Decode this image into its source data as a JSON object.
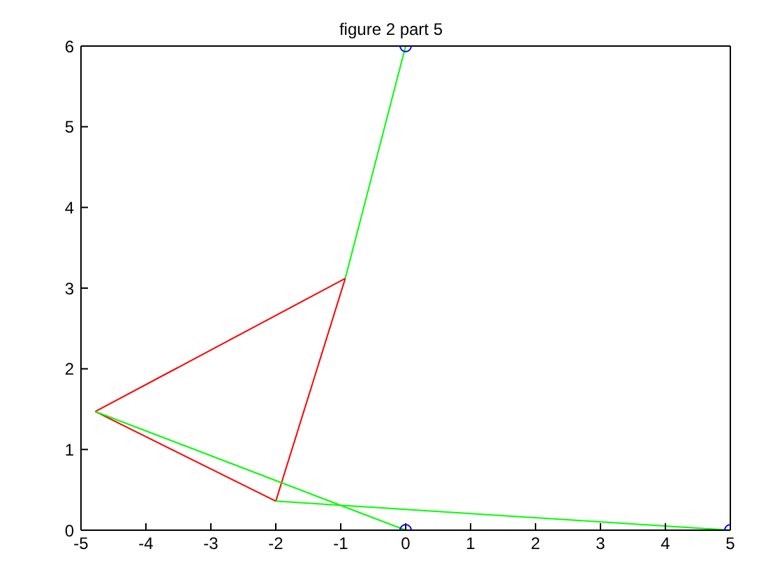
{
  "chart_data": {
    "type": "line",
    "title": "figure 2 part 5",
    "series": [
      {
        "color": "#ff0000",
        "x": [
          -4.78,
          -0.93
        ],
        "values": [
          1.47,
          3.12
        ]
      },
      {
        "color": "#ff0000",
        "x": [
          -4.78,
          -2.0
        ],
        "values": [
          1.47,
          0.36
        ]
      },
      {
        "color": "#ff0000",
        "x": [
          -2.0,
          -0.93
        ],
        "values": [
          0.36,
          3.12
        ]
      },
      {
        "color": "#00ff00",
        "x": [
          -0.93,
          0
        ],
        "values": [
          3.12,
          6
        ]
      },
      {
        "color": "#00ff00",
        "x": [
          -4.78,
          0
        ],
        "values": [
          1.47,
          0
        ]
      },
      {
        "color": "#00ff00",
        "x": [
          -2.0,
          5
        ],
        "values": [
          0.36,
          0
        ]
      },
      {
        "type": "scatter",
        "color": "#0000ff",
        "marker": "circle",
        "x": [
          0,
          0,
          5
        ],
        "values": [
          6,
          0,
          0
        ]
      }
    ],
    "xlim": [
      -5,
      5
    ],
    "xticks": [
      -5,
      -4,
      -3,
      -2,
      -1,
      0,
      1,
      2,
      3,
      4,
      5
    ],
    "ylim": [
      0,
      6
    ],
    "yticks": [
      0,
      1,
      2,
      3,
      4,
      5,
      6
    ],
    "marker": "none",
    "line_style": "solid"
  }
}
